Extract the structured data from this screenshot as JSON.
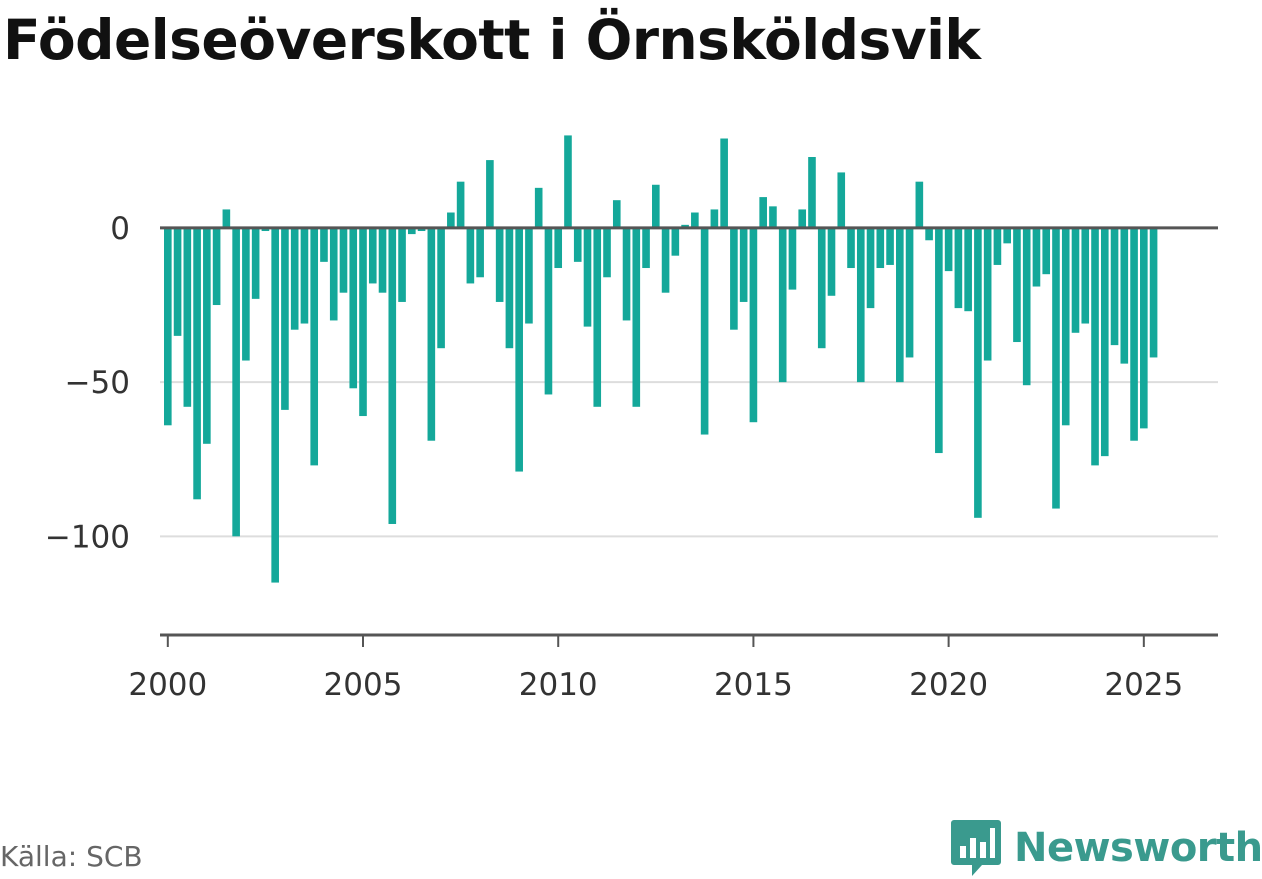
{
  "source_note": "Källa: SCB",
  "brand": {
    "name": "Newsworthy",
    "icon": "newsworthy-logo-icon",
    "color": "#3a9a8e"
  },
  "colors": {
    "bar": "#14a89a",
    "axis": "#555555",
    "grid": "#dddddd",
    "zero_line": "#555555"
  },
  "chart_data": {
    "type": "bar",
    "title": "Födelseöverskott i Örnsköldsvik",
    "xlabel": "",
    "ylabel": "",
    "grid": true,
    "xlim": [
      1999.8,
      2026.9
    ],
    "ylim": [
      -132,
      35
    ],
    "y_ticks": [
      0,
      -50,
      -100
    ],
    "y_tick_labels": [
      "0",
      "−50",
      "−100"
    ],
    "x_ticks": [
      2000,
      2005,
      2010,
      2015,
      2020,
      2025
    ],
    "x_tick_labels": [
      "2000",
      "2005",
      "2010",
      "2015",
      "2020",
      "2025"
    ],
    "x": [
      2000.0,
      2000.25,
      2000.5,
      2000.75,
      2001.0,
      2001.25,
      2001.5,
      2001.75,
      2002.0,
      2002.25,
      2002.5,
      2002.75,
      2003.0,
      2003.25,
      2003.5,
      2003.75,
      2004.0,
      2004.25,
      2004.5,
      2004.75,
      2005.0,
      2005.25,
      2005.5,
      2005.75,
      2006.0,
      2006.25,
      2006.5,
      2006.75,
      2007.0,
      2007.25,
      2007.5,
      2007.75,
      2008.0,
      2008.25,
      2008.5,
      2008.75,
      2009.0,
      2009.25,
      2009.5,
      2009.75,
      2010.0,
      2010.25,
      2010.5,
      2010.75,
      2011.0,
      2011.25,
      2011.5,
      2011.75,
      2012.0,
      2012.25,
      2012.5,
      2012.75,
      2013.0,
      2013.25,
      2013.5,
      2013.75,
      2014.0,
      2014.25,
      2014.5,
      2014.75,
      2015.0,
      2015.25,
      2015.5,
      2015.75,
      2016.0,
      2016.25,
      2016.5,
      2016.75,
      2017.0,
      2017.25,
      2017.5,
      2017.75,
      2018.0,
      2018.25,
      2018.5,
      2018.75,
      2019.0,
      2019.25,
      2019.5,
      2019.75,
      2020.0,
      2020.25,
      2020.5,
      2020.75,
      2021.0,
      2021.25,
      2021.5,
      2021.75,
      2022.0,
      2022.25,
      2022.5,
      2022.75,
      2023.0,
      2023.25,
      2023.5,
      2023.75,
      2024.0,
      2024.25,
      2024.5,
      2024.75,
      2025.0,
      2025.25
    ],
    "values": [
      -64,
      -35,
      -58,
      -88,
      -70,
      -25,
      6,
      -100,
      -43,
      -23,
      -1,
      -115,
      -59,
      -33,
      -31,
      -77,
      -11,
      -30,
      -21,
      -52,
      -61,
      -18,
      -21,
      -96,
      -24,
      -2,
      -1,
      -69,
      -39,
      5,
      15,
      -18,
      -16,
      22,
      -24,
      -39,
      -79,
      -31,
      13,
      -54,
      -13,
      30,
      -11,
      -32,
      -58,
      -16,
      9,
      -30,
      -58,
      -13,
      14,
      -21,
      -9,
      1,
      5,
      -67,
      6,
      29,
      -33,
      -24,
      -63,
      10,
      7,
      -50,
      -20,
      6,
      23,
      -39,
      -22,
      18,
      -13,
      -50,
      -26,
      -13,
      -12,
      -50,
      -42,
      15,
      -4,
      -73,
      -14,
      -26,
      -27,
      -94,
      -43,
      -12,
      -5,
      -37,
      -51,
      -19,
      -15,
      -91,
      -64,
      -34,
      -31,
      -77,
      -74,
      -38,
      -44,
      -69,
      -65,
      -42
    ]
  }
}
